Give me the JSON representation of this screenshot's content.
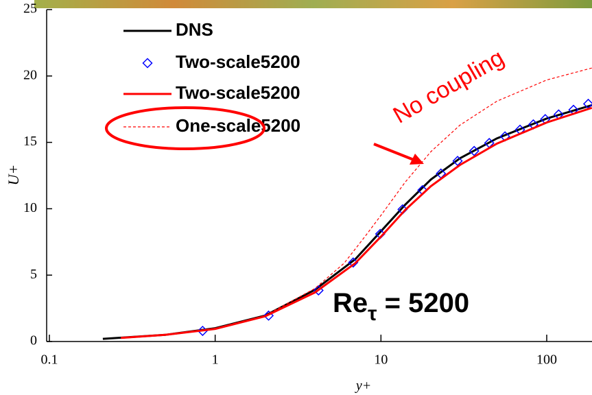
{
  "chart_data": {
    "type": "line",
    "x_label": "y+",
    "y_label": "U+",
    "log_x": true,
    "xlim": [
      0.1,
      187
    ],
    "ylim": [
      0,
      25
    ],
    "xticks": [
      0.1,
      1,
      10,
      100
    ],
    "yticks": [
      0,
      5,
      10,
      15,
      20,
      25
    ],
    "series": [
      {
        "name": "DNS",
        "color": "#000000",
        "style": "solid",
        "x": [
          0.21,
          0.5,
          1,
          2,
          4,
          7,
          10,
          14,
          20,
          30,
          50,
          100,
          187
        ],
        "values": [
          0.2,
          0.5,
          1.0,
          1.95,
          3.9,
          6.2,
          8.3,
          10.3,
          12.2,
          13.8,
          15.3,
          16.8,
          17.8
        ]
      },
      {
        "name": "Two-scale5200",
        "color": "#0000ff",
        "style": "marker",
        "marker": "diamond",
        "x": [
          0.84,
          2.1,
          4.2,
          6.8,
          9.9,
          13.5,
          17.8,
          23,
          29,
          36.5,
          45,
          56,
          69,
          83,
          98,
          118,
          145,
          178
        ],
        "values": [
          0.8,
          1.95,
          3.85,
          5.95,
          8.1,
          9.95,
          11.4,
          12.65,
          13.6,
          14.35,
          14.95,
          15.45,
          15.95,
          16.35,
          16.75,
          17.1,
          17.45,
          17.9
        ]
      },
      {
        "name": "Two-scale5200",
        "color": "#ff0000",
        "style": "solid",
        "x": [
          0.27,
          0.5,
          1,
          2,
          4,
          7,
          10,
          14,
          20,
          30,
          50,
          100,
          187
        ],
        "values": [
          0.27,
          0.5,
          0.95,
          1.9,
          3.7,
          5.9,
          7.9,
          9.9,
          11.7,
          13.3,
          14.9,
          16.5,
          17.6
        ]
      },
      {
        "name": "One-scale5200",
        "color": "#ff0000",
        "style": "dashed",
        "x": [
          0.3,
          0.5,
          1,
          2,
          4,
          6,
          8,
          10,
          14,
          20,
          30,
          50,
          100,
          187
        ],
        "values": [
          0.3,
          0.5,
          1.0,
          1.95,
          4.0,
          5.9,
          7.9,
          9.5,
          12.0,
          14.3,
          16.3,
          18.1,
          19.7,
          20.6
        ]
      }
    ],
    "annotations": {
      "no_coupling": "No coupling",
      "re": "Re",
      "re_sub": "τ",
      "re_value": " = 5200"
    }
  }
}
